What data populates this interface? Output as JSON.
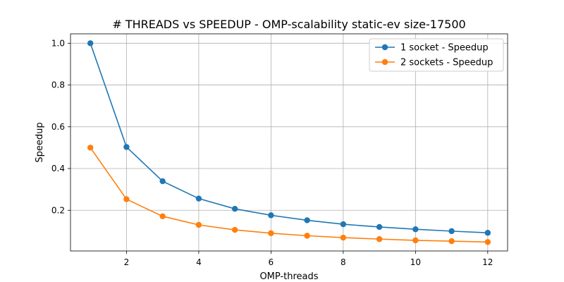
{
  "chart_data": {
    "type": "line",
    "title": "# THREADS vs SPEEDUP - OMP-scalability static-ev size-17500",
    "xlabel": "OMP-threads",
    "ylabel": "Speedup",
    "xlim": [
      0.45,
      12.55
    ],
    "ylim": [
      0.005,
      1.045
    ],
    "xticks": [
      2,
      4,
      6,
      8,
      10,
      12
    ],
    "yticks": [
      0.2,
      0.4,
      0.6,
      0.8,
      1.0
    ],
    "ytick_labels": [
      "0.2",
      "0.4",
      "0.6",
      "0.8",
      "1.0"
    ],
    "grid": true,
    "legend_position": "top-right",
    "x": [
      1,
      2,
      3,
      4,
      5,
      6,
      7,
      8,
      9,
      10,
      11,
      12
    ],
    "series": [
      {
        "name": "1 socket - Speedup",
        "color": "#1f77b4",
        "values": [
          1.0,
          0.503,
          0.339,
          0.256,
          0.207,
          0.176,
          0.152,
          0.133,
          0.12,
          0.109,
          0.1,
          0.092
        ]
      },
      {
        "name": "2 sockets - Speedup",
        "color": "#ff7f0e",
        "values": [
          0.5,
          0.253,
          0.171,
          0.13,
          0.106,
          0.09,
          0.078,
          0.069,
          0.062,
          0.056,
          0.052,
          0.048
        ]
      }
    ]
  }
}
